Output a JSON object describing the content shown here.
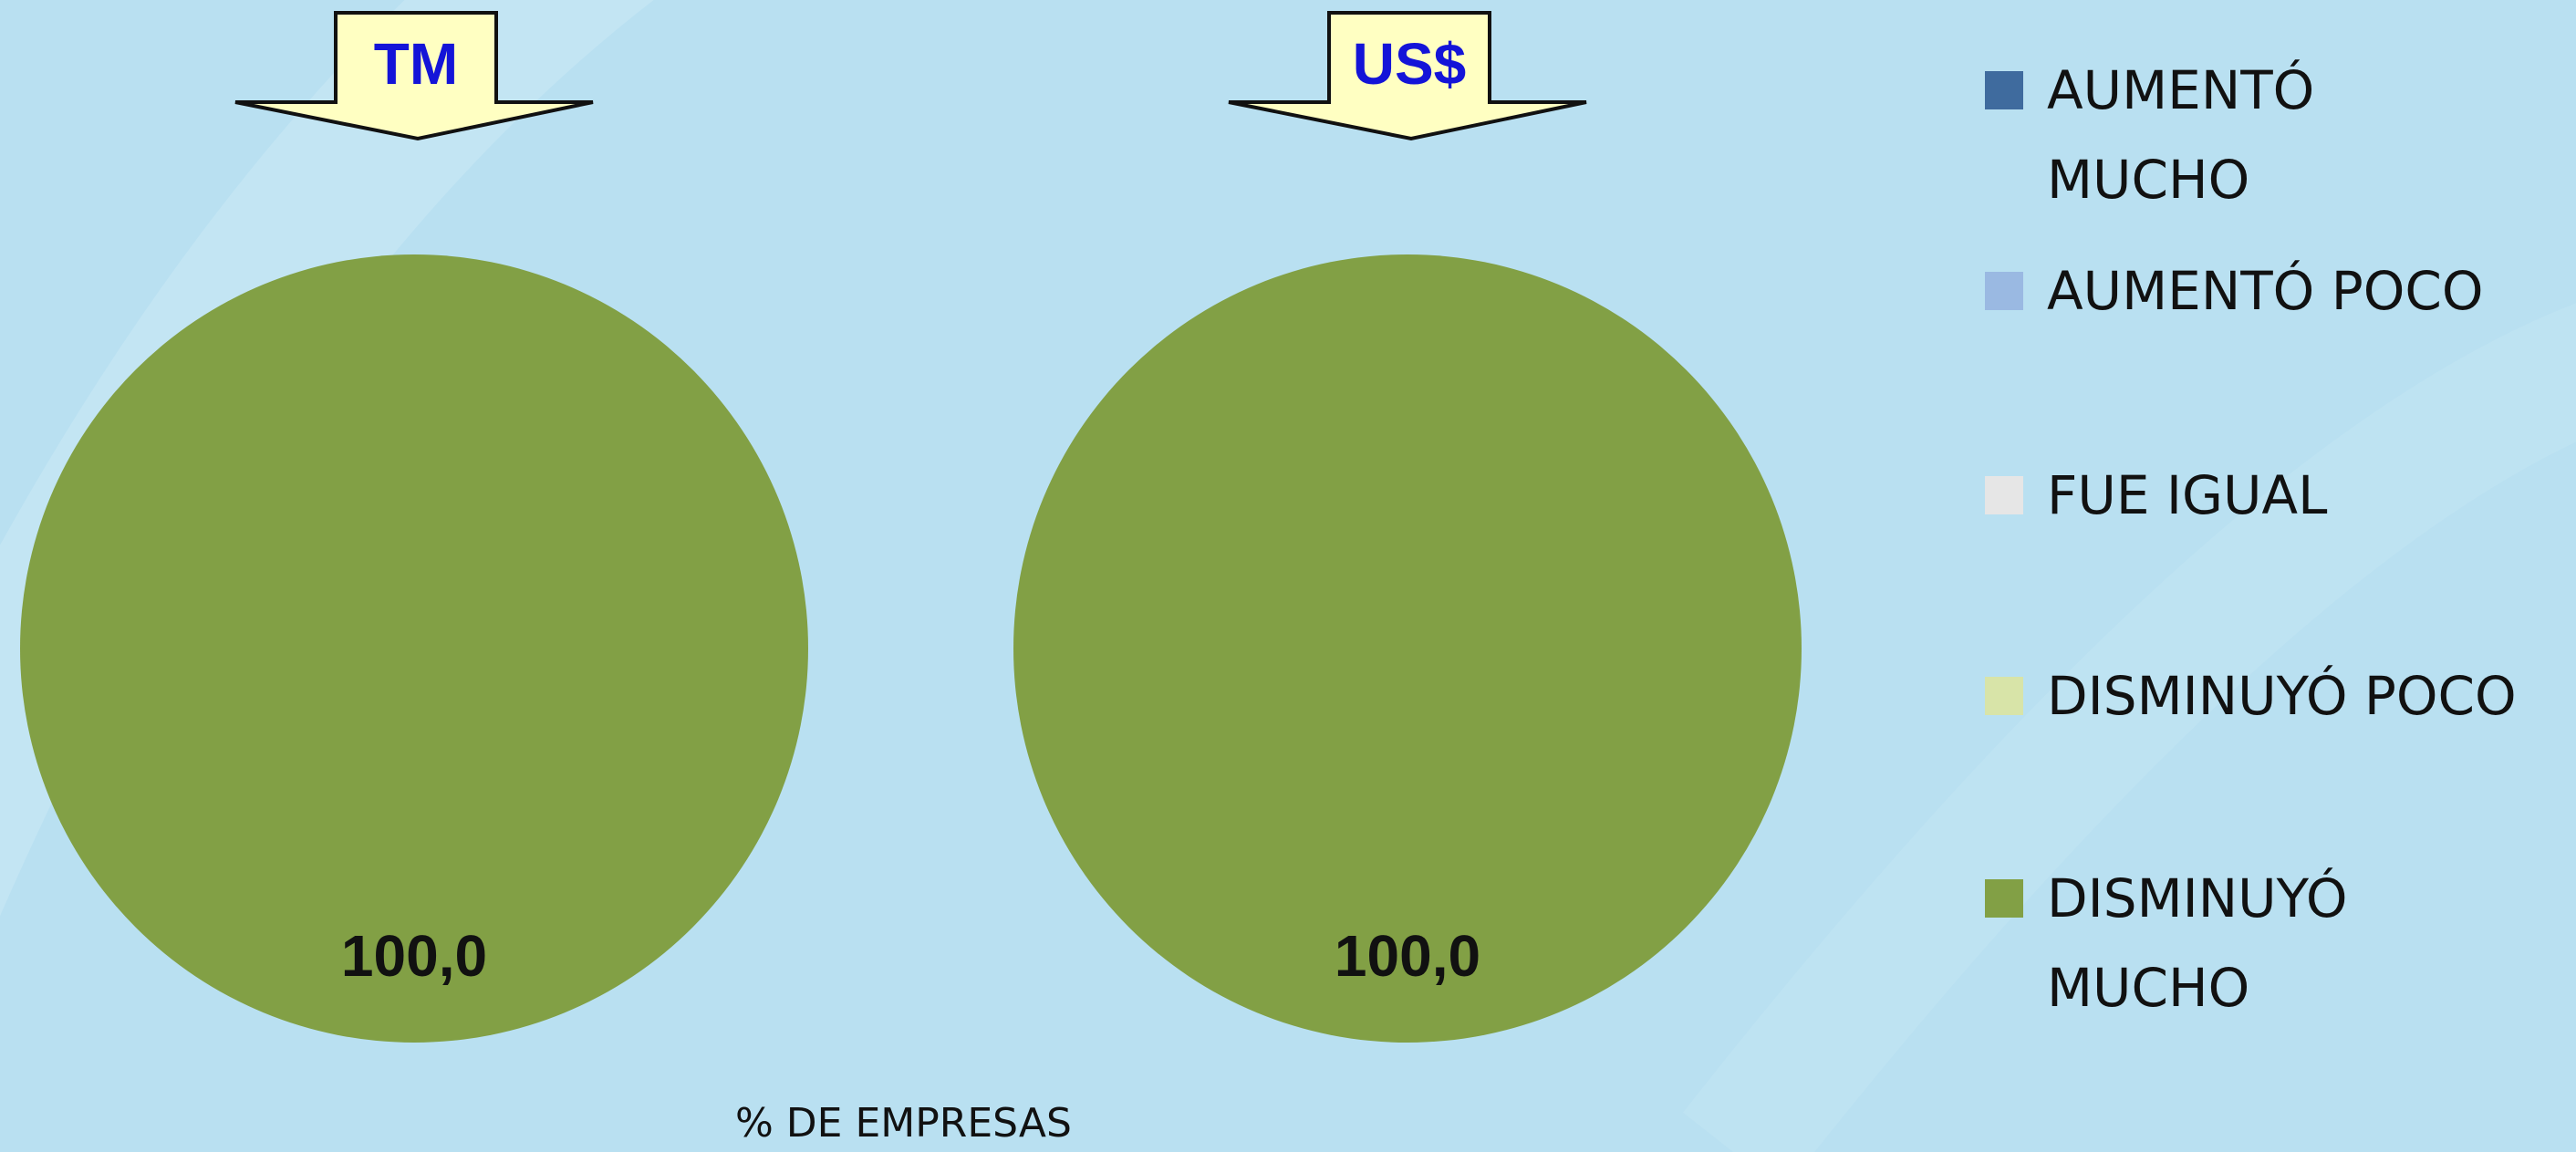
{
  "legend": {
    "categories": [
      "AUMENTÓ MUCHO",
      "AUMENTÓ POCO",
      "FUE IGUAL",
      "DISMINUYÓ POCO",
      "DISMINUYÓ MUCHO"
    ],
    "colors": [
      "#3f6b9e",
      "#9ab9e2",
      "#e6e6e6",
      "#d8e4a8",
      "#82a045"
    ]
  },
  "chart_data": [
    {
      "type": "pie",
      "title": "TM",
      "values": [
        0,
        0,
        0,
        0,
        100
      ],
      "value_labels": [
        null,
        null,
        null,
        null,
        "100,0"
      ]
    },
    {
      "type": "pie",
      "title": "US$",
      "values": [
        0,
        0,
        0,
        0,
        100
      ],
      "value_labels": [
        null,
        null,
        null,
        null,
        "100,0"
      ]
    }
  ],
  "note": "% DE EMPRESAS"
}
